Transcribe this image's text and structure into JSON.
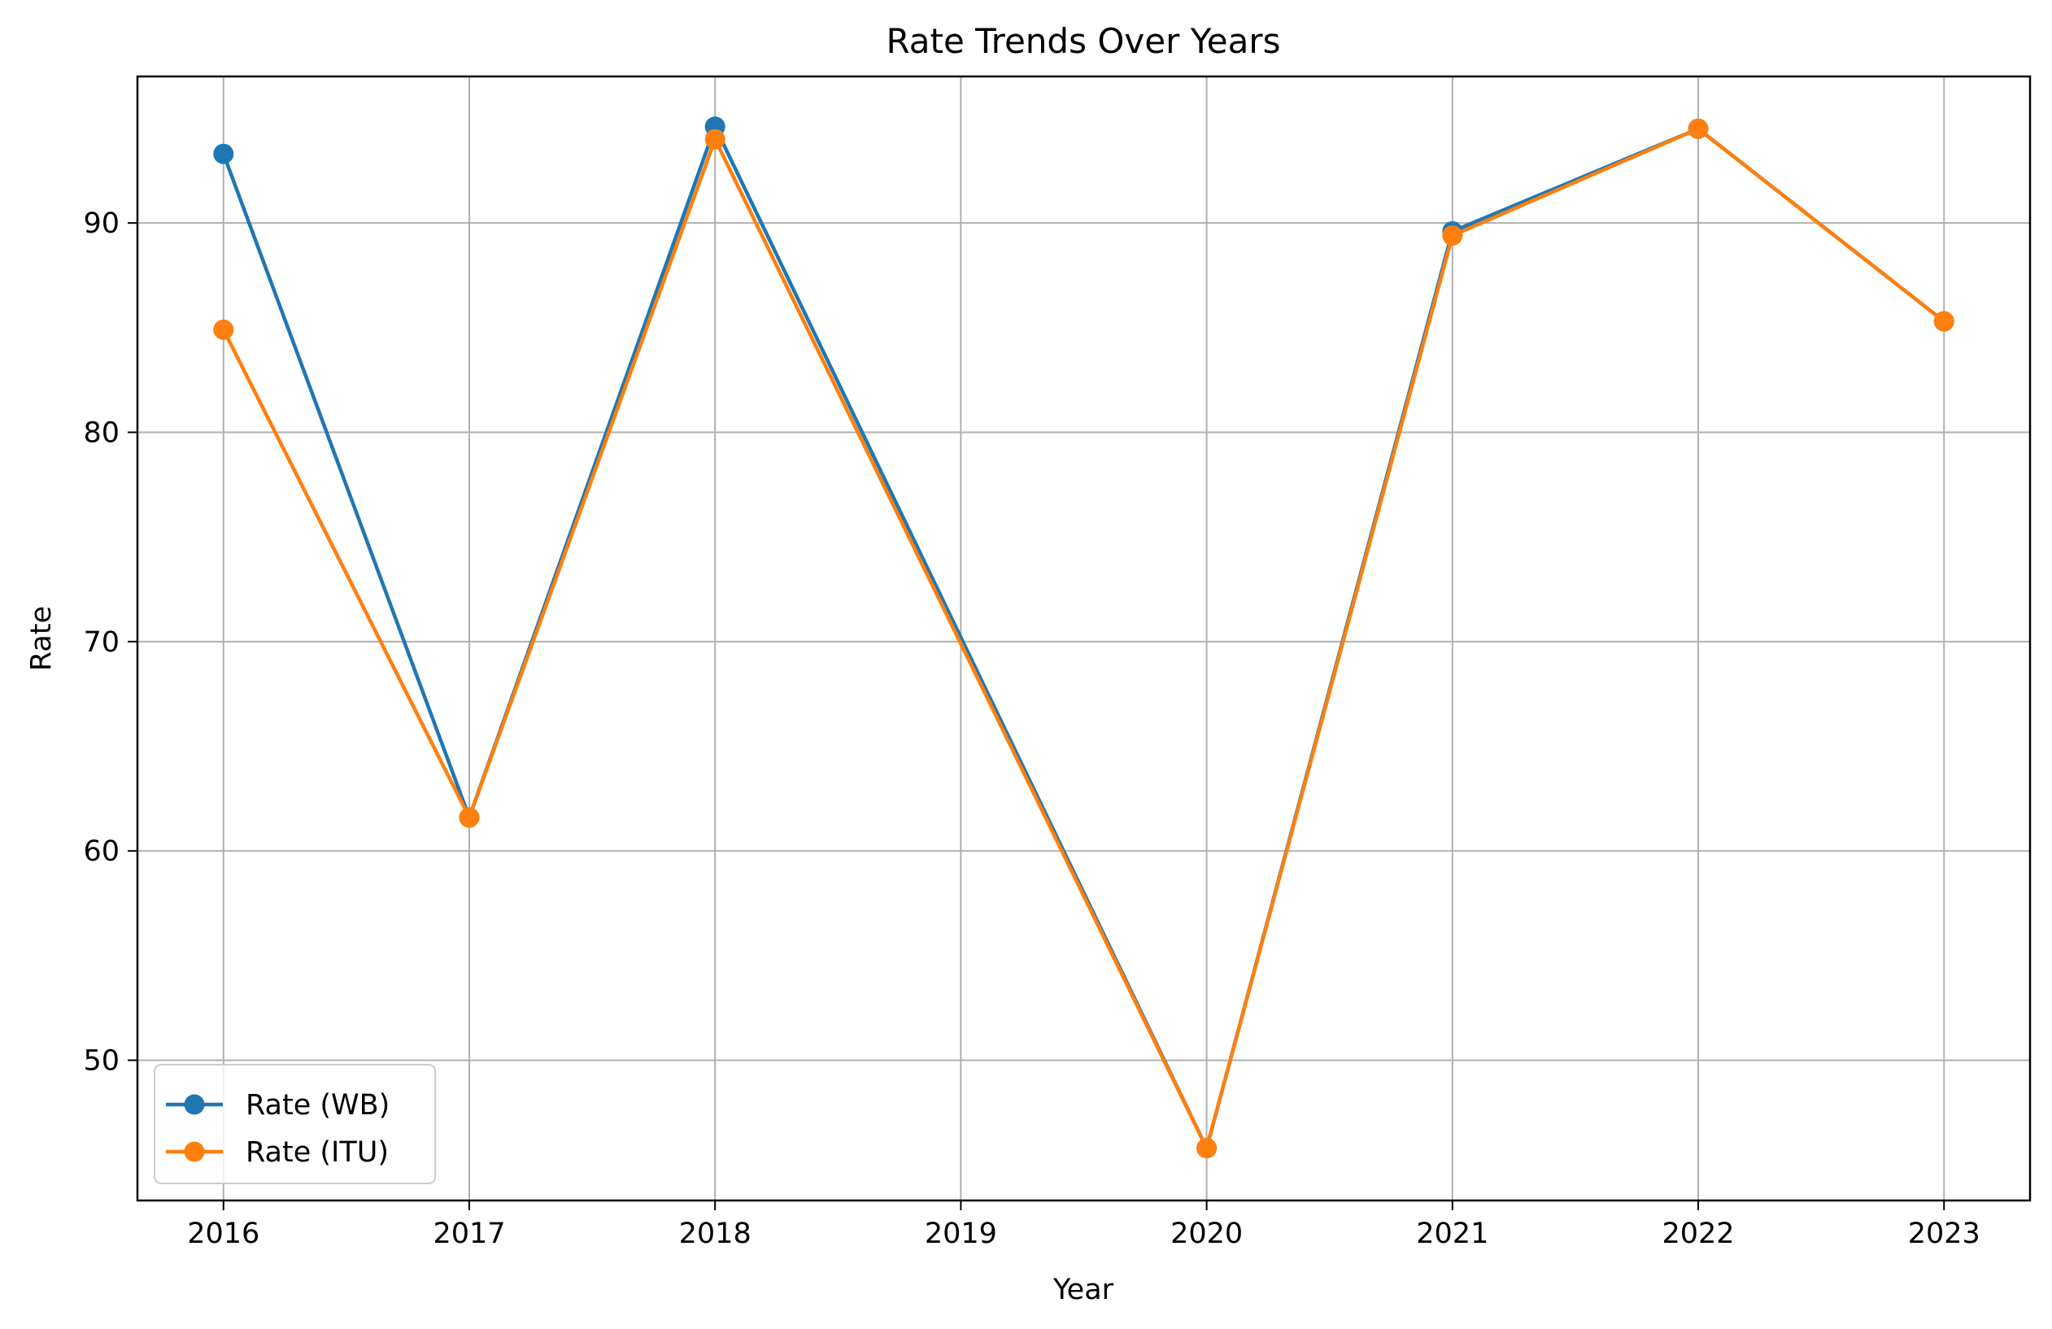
{
  "chart_data": {
    "type": "line",
    "title": "Rate Trends Over Years",
    "xlabel": "Year",
    "ylabel": "Rate",
    "x": [
      2016,
      2017,
      2018,
      2019,
      2020,
      2021,
      2022,
      2023
    ],
    "xlim": [
      2015.65,
      2023.35
    ],
    "ylim": [
      43.3,
      97.0
    ],
    "xticks": [
      "2016",
      "2017",
      "2018",
      "2019",
      "2020",
      "2021",
      "2022",
      "2023"
    ],
    "yticks": [
      "50",
      "60",
      "70",
      "80",
      "90"
    ],
    "grid": true,
    "legend_position": "lower-left",
    "series": [
      {
        "name": "Rate (WB)",
        "color": "#1f77b4",
        "marker": "circle",
        "points": [
          [
            2016,
            93.3
          ],
          [
            2017,
            61.6
          ],
          [
            2018,
            94.6
          ],
          [
            2020,
            45.8
          ],
          [
            2021,
            89.6
          ],
          [
            2022,
            94.5
          ],
          [
            2023,
            85.3
          ]
        ]
      },
      {
        "name": "Rate (ITU)",
        "color": "#ff7f0e",
        "marker": "circle",
        "points": [
          [
            2016,
            84.9
          ],
          [
            2017,
            61.6
          ],
          [
            2018,
            94.0
          ],
          [
            2020,
            45.8
          ],
          [
            2021,
            89.4
          ],
          [
            2022,
            94.5
          ],
          [
            2023,
            85.3
          ]
        ]
      }
    ]
  }
}
